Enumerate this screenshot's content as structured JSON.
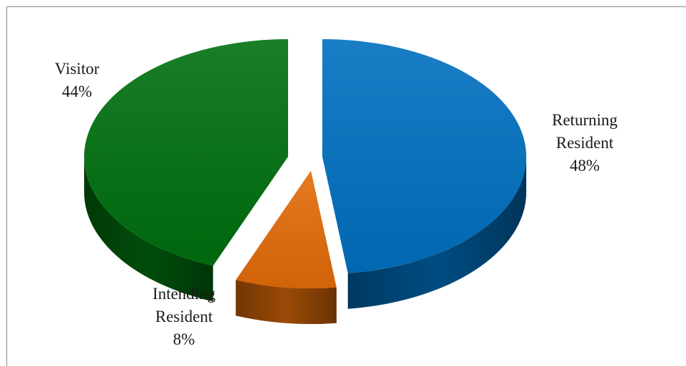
{
  "chart_data": {
    "type": "pie",
    "style": "3d-exploded",
    "slices": [
      {
        "label_lines": [
          "Returning",
          "Resident"
        ],
        "value": 48,
        "value_label": "48%",
        "color": "#0070c0"
      },
      {
        "label_lines": [
          "Intending",
          "Resident"
        ],
        "value": 8,
        "value_label": "8%",
        "color": "#e36c09"
      },
      {
        "label_lines": [
          "Visitor"
        ],
        "value": 44,
        "value_label": "44%",
        "color": "#00700f"
      }
    ],
    "legend": "none",
    "data_labels": "outside"
  }
}
